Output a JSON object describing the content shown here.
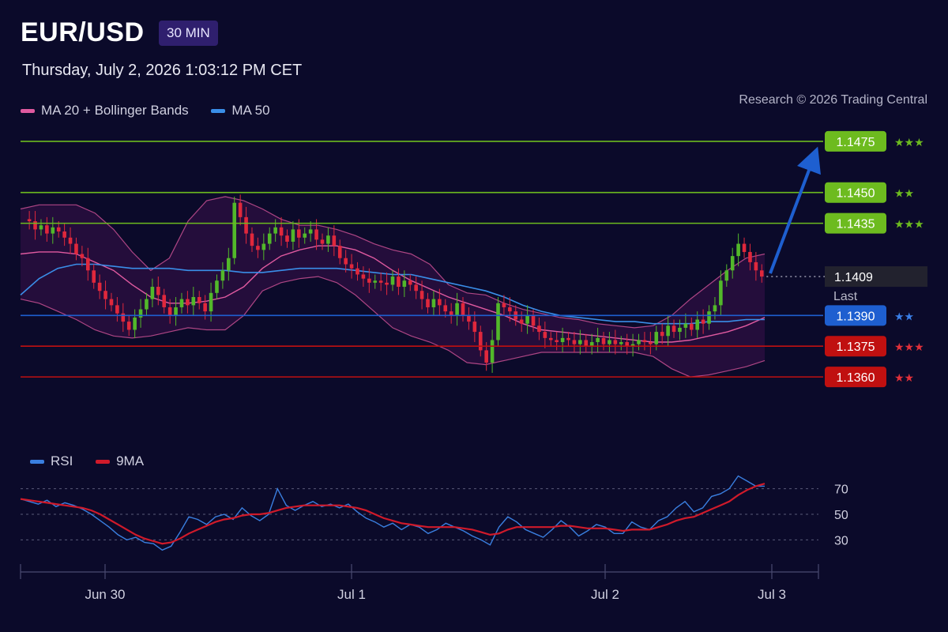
{
  "header": {
    "symbol": "EUR/USD",
    "timeframe": "30 MIN",
    "datetime": "Thursday, July 2, 2026 1:03:12 PM CET",
    "credit": "Research © 2026 Trading Central"
  },
  "legend": {
    "items": [
      {
        "label": "MA 20 + Bollinger Bands",
        "color": "#e05aa0"
      },
      {
        "label": "MA 50",
        "color": "#3a8ee8"
      }
    ]
  },
  "rsi_legend": {
    "items": [
      {
        "label": "RSI",
        "color": "#3a7fe0"
      },
      {
        "label": "9MA",
        "color": "#d01a2a"
      }
    ]
  },
  "colors": {
    "background": "#0b0a2a",
    "resistance": "#6dbb1f",
    "pivot": "#1e5fd0",
    "support": "#c01010",
    "bull_candle": "#52b82a",
    "bear_candle": "#e0283c",
    "bands": "#e05aa0",
    "ma50": "#3a8ee8"
  },
  "chart_data": [
    {
      "type": "candlestick",
      "title": "EUR/USD",
      "interval": "30 MIN",
      "ylim": [
        1.134,
        1.149
      ],
      "x_ticks": [
        "Jun 30",
        "Jul 1",
        "Jul 2",
        "Jul 3"
      ],
      "levels": [
        {
          "value": 1.1475,
          "label": "1.1475",
          "kind": "resistance",
          "stars": "★★★"
        },
        {
          "value": 1.145,
          "label": "1.1450",
          "kind": "resistance",
          "stars": "★★"
        },
        {
          "value": 1.1435,
          "label": "1.1435",
          "kind": "resistance",
          "stars": "★★★"
        },
        {
          "value": 1.139,
          "label": "1.1390",
          "kind": "pivot",
          "stars": "★★"
        },
        {
          "value": 1.1375,
          "label": "1.1375",
          "kind": "support",
          "stars": "★★★"
        },
        {
          "value": 1.136,
          "label": "1.1360",
          "kind": "support",
          "stars": "★★"
        }
      ],
      "last": {
        "value": 1.1409,
        "label": "1.1409",
        "caption": "Last"
      },
      "target_arrow": {
        "from": 1.1409,
        "to": 1.1475
      },
      "price_path": [
        1.1437,
        1.1436,
        1.1432,
        1.1434,
        1.143,
        1.1433,
        1.1431,
        1.1428,
        1.1425,
        1.142,
        1.1418,
        1.1412,
        1.1406,
        1.1402,
        1.1398,
        1.1395,
        1.1391,
        1.1387,
        1.1383,
        1.1389,
        1.1393,
        1.1398,
        1.1404,
        1.14,
        1.1394,
        1.139,
        1.1394,
        1.1398,
        1.1395,
        1.1399,
        1.1396,
        1.1392,
        1.1401,
        1.1407,
        1.1412,
        1.1418,
        1.1445,
        1.1438,
        1.143,
        1.1424,
        1.1422,
        1.1425,
        1.143,
        1.1433,
        1.1429,
        1.1426,
        1.1432,
        1.1428,
        1.143,
        1.1432,
        1.1427,
        1.1425,
        1.1429,
        1.1424,
        1.1418,
        1.1415,
        1.1413,
        1.141,
        1.1408,
        1.1406,
        1.1407,
        1.1406,
        1.1405,
        1.1409,
        1.1404,
        1.1407,
        1.1405,
        1.1402,
        1.1398,
        1.1394,
        1.1398,
        1.1395,
        1.1392,
        1.139,
        1.1396,
        1.139,
        1.1387,
        1.1382,
        1.1373,
        1.1367,
        1.1378,
        1.1396,
        1.1394,
        1.1392,
        1.1388,
        1.1386,
        1.139,
        1.1385,
        1.1382,
        1.1379,
        1.1378,
        1.1377,
        1.1379,
        1.1378,
        1.1376,
        1.1378,
        1.1375,
        1.1377,
        1.1379,
        1.1376,
        1.1378,
        1.1376,
        1.1377,
        1.1375,
        1.1376,
        1.1378,
        1.1377,
        1.1376,
        1.1382,
        1.138,
        1.1385,
        1.1382,
        1.1384,
        1.1386,
        1.1383,
        1.1388,
        1.1386,
        1.1392,
        1.1395,
        1.1407,
        1.1412,
        1.1419,
        1.1425,
        1.1421,
        1.1416,
        1.1412,
        1.1409
      ],
      "series": [
        {
          "name": "MA 20 + Bollinger Bands",
          "ma": [
            1.142,
            1.1421,
            1.1421,
            1.142,
            1.1416,
            1.1412,
            1.1405,
            1.1399,
            1.1396,
            1.1396,
            1.1397,
            1.1399,
            1.1404,
            1.1413,
            1.1419,
            1.1422,
            1.1424,
            1.1424,
            1.1422,
            1.1418,
            1.1412,
            1.1407,
            1.1403,
            1.1399,
            1.1396,
            1.1393,
            1.139,
            1.1386,
            1.1383,
            1.1382,
            1.1381,
            1.138,
            1.1379,
            1.1378,
            1.1377,
            1.1377,
            1.1378,
            1.138,
            1.1382,
            1.1385,
            1.1389
          ],
          "upper": [
            1.1442,
            1.1444,
            1.1444,
            1.1444,
            1.144,
            1.1432,
            1.1421,
            1.1412,
            1.1418,
            1.1436,
            1.1446,
            1.1448,
            1.1446,
            1.1442,
            1.1437,
            1.1434,
            1.1434,
            1.1432,
            1.1429,
            1.1425,
            1.1422,
            1.142,
            1.1415,
            1.1405,
            1.1401,
            1.14,
            1.1396,
            1.1393,
            1.1391,
            1.1389,
            1.1388,
            1.1386,
            1.1385,
            1.1384,
            1.1385,
            1.139,
            1.1398,
            1.1405,
            1.1412,
            1.1418,
            1.142
          ],
          "lower": [
            1.1398,
            1.1396,
            1.1392,
            1.1388,
            1.1383,
            1.138,
            1.1379,
            1.138,
            1.1382,
            1.1384,
            1.1383,
            1.1383,
            1.139,
            1.1402,
            1.1406,
            1.1408,
            1.1409,
            1.1406,
            1.14,
            1.1392,
            1.1384,
            1.138,
            1.1377,
            1.1373,
            1.1367,
            1.1366,
            1.1368,
            1.137,
            1.1372,
            1.1372,
            1.1372,
            1.1372,
            1.1372,
            1.1372,
            1.137,
            1.1364,
            1.136,
            1.1361,
            1.1363,
            1.1365,
            1.1368
          ]
        },
        {
          "name": "MA 50",
          "values": [
            1.14,
            1.1408,
            1.1413,
            1.1415,
            1.1415,
            1.1414,
            1.1413,
            1.1413,
            1.1413,
            1.1412,
            1.1412,
            1.1412,
            1.1411,
            1.1411,
            1.1412,
            1.1413,
            1.1413,
            1.1413,
            1.1412,
            1.1411,
            1.141,
            1.141,
            1.1408,
            1.1406,
            1.1404,
            1.1402,
            1.1399,
            1.1395,
            1.1392,
            1.139,
            1.1389,
            1.1388,
            1.1387,
            1.1387,
            1.1386,
            1.1386,
            1.1386,
            1.1387,
            1.1387,
            1.1388,
            1.1388
          ]
        }
      ]
    },
    {
      "type": "line",
      "title": "RSI",
      "ylim": [
        16,
        84
      ],
      "y_ticks": [
        70,
        50,
        30
      ],
      "x_ticks": [
        "Jun 30",
        "Jul 1",
        "Jul 2",
        "Jul 3"
      ],
      "series": [
        {
          "name": "RSI",
          "values": [
            62,
            60,
            58,
            61,
            56,
            59,
            57,
            54,
            50,
            45,
            40,
            34,
            30,
            32,
            28,
            27,
            22,
            25,
            36,
            48,
            46,
            42,
            48,
            50,
            46,
            55,
            49,
            45,
            50,
            70,
            57,
            53,
            57,
            60,
            56,
            58,
            55,
            58,
            52,
            47,
            44,
            40,
            43,
            38,
            42,
            40,
            35,
            38,
            43,
            40,
            37,
            33,
            30,
            26,
            40,
            48,
            44,
            38,
            35,
            32,
            38,
            45,
            40,
            33,
            37,
            42,
            40,
            35,
            35,
            44,
            40,
            38,
            45,
            48,
            55,
            60,
            52,
            55,
            64,
            66,
            70,
            80,
            76,
            72,
            72
          ]
        },
        {
          "name": "9MA",
          "values": [
            62,
            61,
            60,
            59,
            58,
            57,
            56,
            55,
            53,
            50,
            46,
            42,
            38,
            34,
            31,
            29,
            27,
            28,
            31,
            35,
            38,
            41,
            44,
            46,
            47,
            49,
            50,
            50,
            51,
            53,
            55,
            56,
            57,
            57,
            57,
            57,
            57,
            56,
            55,
            53,
            50,
            47,
            45,
            43,
            42,
            41,
            40,
            40,
            40,
            40,
            39,
            38,
            36,
            34,
            35,
            38,
            40,
            40,
            40,
            40,
            40,
            41,
            41,
            40,
            39,
            39,
            39,
            38,
            37,
            38,
            38,
            38,
            40,
            42,
            45,
            47,
            48,
            51,
            54,
            57,
            60,
            65,
            69,
            72,
            74
          ]
        }
      ]
    }
  ]
}
